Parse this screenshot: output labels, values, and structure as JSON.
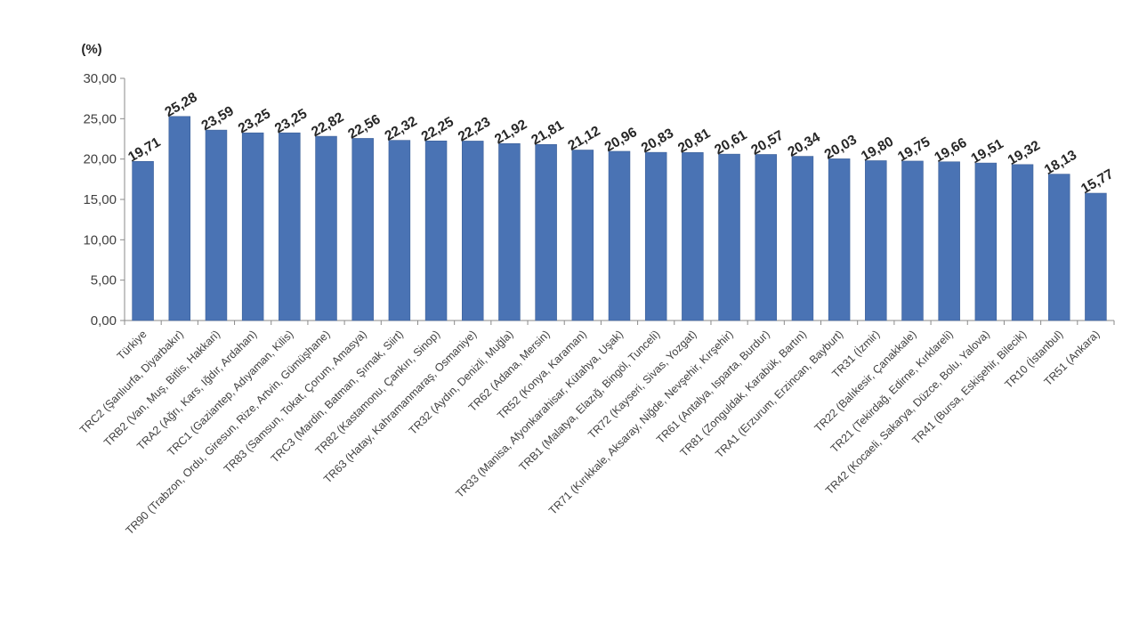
{
  "chart_data": {
    "type": "bar",
    "unit_label": "(%)",
    "ylim": [
      0,
      30
    ],
    "yticks": [
      "0,00",
      "5,00",
      "10,00",
      "15,00",
      "20,00",
      "25,00",
      "30,00"
    ],
    "grid": false,
    "legend": "none",
    "bar_color": "#4a73b4",
    "categories": [
      "Türkiye",
      "TRC2 (Şanlıurfa, Diyarbakır)",
      "TRB2 (Van, Muş, Bitlis, Hakkari)",
      "TRA2 (Ağrı, Kars, Iğdır, Ardahan)",
      "TRC1 (Gaziantep, Adıyaman, Kilis)",
      "TR90 (Trabzon, Ordu, Giresun, Rize, Artvin, Gümüşhane)",
      "TR83 (Samsun, Tokat, Çorum, Amasya)",
      "TRC3 (Mardin, Batman, Şırnak, Siirt)",
      "TR82 (Kastamonu, Çankırı, Sinop)",
      "TR63 (Hatay, Kahramanmaraş, Osmaniye)",
      "TR32 (Aydın, Denizli, Muğla)",
      "TR62 (Adana, Mersin)",
      "TR52 (Konya, Karaman)",
      "TR33 (Manisa, Afyonkarahisar, Kütahya, Uşak)",
      "TRB1 (Malatya, Elazığ, Bingöl, Tunceli)",
      "TR72 (Kayseri, Sivas, Yozgat)",
      "TR71 (Kırıkkale, Aksaray, Niğde, Nevşehir, Kırşehir)",
      "TR61 (Antalya, Isparta, Burdur)",
      "TR81 (Zonguldak, Karabük, Bartın)",
      "TRA1 (Erzurum, Erzincan, Bayburt)",
      "TR31 (İzmir)",
      "TR22 (Balıkesir, Çanakkale)",
      "TR21 (Tekirdağ, Edirne, Kırklareli)",
      "TR42 (Kocaeli, Sakarya, Düzce, Bolu, Yalova)",
      "TR41 (Bursa, Eskişehir, Bilecik)",
      "TR10 (İstanbul)",
      "TR51 (Ankara)"
    ],
    "values": [
      19.71,
      25.28,
      23.59,
      23.25,
      23.25,
      22.82,
      22.56,
      22.32,
      22.25,
      22.23,
      21.92,
      21.81,
      21.12,
      20.96,
      20.83,
      20.81,
      20.61,
      20.57,
      20.34,
      20.03,
      19.8,
      19.75,
      19.66,
      19.51,
      19.32,
      18.13,
      15.77
    ],
    "data_labels": [
      "19,71",
      "25,28",
      "23,59",
      "23,25",
      "23,25",
      "22,82",
      "22,56",
      "22,32",
      "22,25",
      "22,23",
      "21,92",
      "21,81",
      "21,12",
      "20,96",
      "20,83",
      "20,81",
      "20,61",
      "20,57",
      "20,34",
      "20,03",
      "19,80",
      "19,75",
      "19,66",
      "19,51",
      "19,32",
      "18,13",
      "15,77"
    ]
  }
}
